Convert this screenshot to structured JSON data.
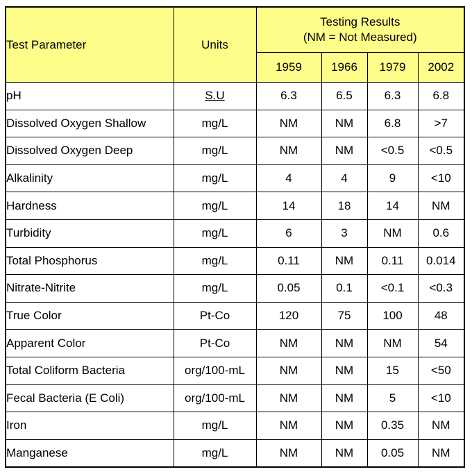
{
  "header": {
    "param_label": "Test Parameter",
    "units_label": "Units",
    "group_title_line1": "Testing Results",
    "group_title_line2": "(NM = Not Measured)",
    "years": [
      "1959",
      "1966",
      "1979",
      "2002"
    ]
  },
  "rows": [
    {
      "parameter": "pH",
      "units": "S.U",
      "values": [
        "6.3",
        "6.5",
        "6.3",
        "6.8"
      ]
    },
    {
      "parameter": "Dissolved Oxygen Shallow",
      "units": "mg/L",
      "values": [
        "NM",
        "NM",
        "6.8",
        ">7"
      ]
    },
    {
      "parameter": "Dissolved Oxygen Deep",
      "units": "mg/L",
      "values": [
        "NM",
        "NM",
        "<0.5",
        "<0.5"
      ]
    },
    {
      "parameter": "Alkalinity",
      "units": "mg/L",
      "values": [
        "4",
        "4",
        "9",
        "<10"
      ]
    },
    {
      "parameter": "Hardness",
      "units": "mg/L",
      "values": [
        "14",
        "18",
        "14",
        "NM"
      ]
    },
    {
      "parameter": "Turbidity",
      "units": "mg/L",
      "values": [
        "6",
        "3",
        "NM",
        "0.6"
      ]
    },
    {
      "parameter": "Total Phosphorus",
      "units": "mg/L",
      "values": [
        "0.11",
        "NM",
        "0.11",
        "0.014"
      ]
    },
    {
      "parameter": "Nitrate-Nitrite",
      "units": "mg/L",
      "values": [
        "0.05",
        "0.1",
        "<0.1",
        "<0.3"
      ]
    },
    {
      "parameter": "True Color",
      "units": "Pt-Co",
      "values": [
        "120",
        "75",
        "100",
        "48"
      ]
    },
    {
      "parameter": "Apparent Color",
      "units": "Pt-Co",
      "values": [
        "NM",
        "NM",
        "NM",
        "54"
      ]
    },
    {
      "parameter": "Total Coliform Bacteria",
      "units": "org/100-mL",
      "values": [
        "NM",
        "NM",
        "15",
        "<50"
      ]
    },
    {
      "parameter": "Fecal Bacteria (E Coli)",
      "units": "org/100-mL",
      "values": [
        "NM",
        "NM",
        "5",
        "<10"
      ]
    },
    {
      "parameter": "Iron",
      "units": "mg/L",
      "values": [
        "NM",
        "NM",
        "0.35",
        "NM"
      ]
    },
    {
      "parameter": "Manganese",
      "units": "mg/L",
      "values": [
        "NM",
        "NM",
        "0.05",
        "NM"
      ]
    }
  ],
  "colors": {
    "header_fill": "#fdfd8a",
    "border": "#000000"
  }
}
